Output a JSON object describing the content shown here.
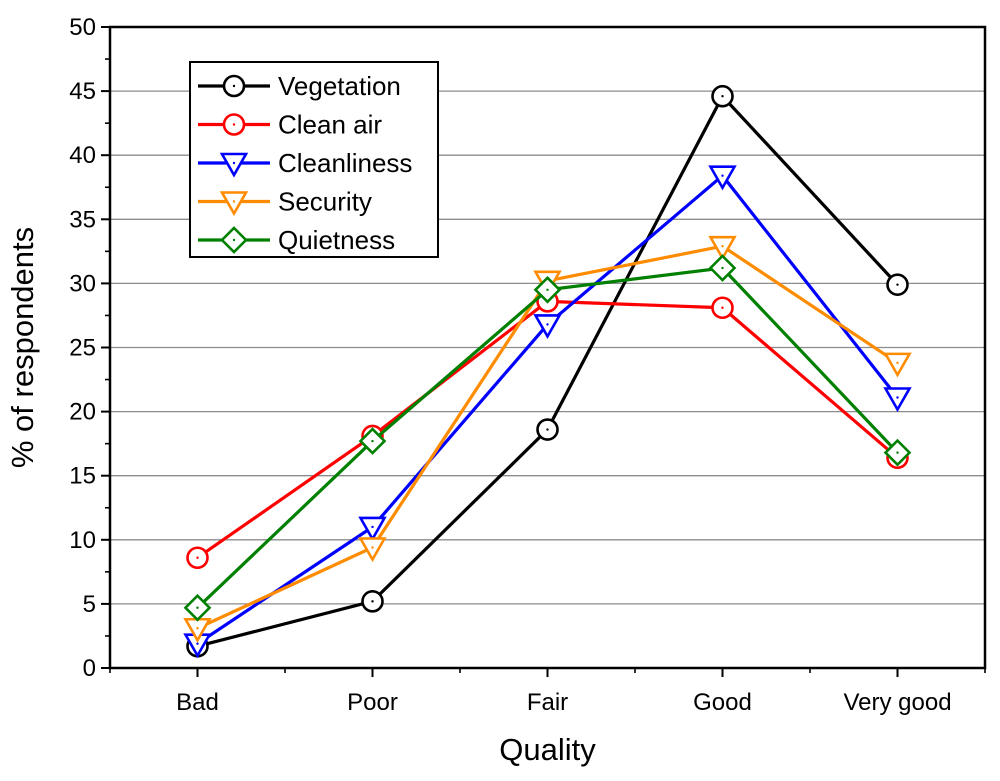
{
  "chart_data": {
    "type": "line",
    "title": "",
    "xlabel": "Quality",
    "ylabel": "% of respondents",
    "categories": [
      "Bad",
      "Poor",
      "Fair",
      "Good",
      "Very good"
    ],
    "ylim": [
      0,
      50
    ],
    "yticks": [
      0,
      5,
      10,
      15,
      20,
      25,
      30,
      35,
      40,
      45,
      50
    ],
    "grid": "horizontal",
    "legend_position": "top-left",
    "series": [
      {
        "name": "Vegetation",
        "color": "#000000",
        "marker": "circle",
        "values": [
          1.7,
          5.2,
          18.6,
          44.6,
          29.9
        ]
      },
      {
        "name": "Clean air",
        "color": "#ff0000",
        "marker": "circle",
        "values": [
          8.6,
          18.1,
          28.6,
          28.1,
          16.4
        ]
      },
      {
        "name": "Cleanliness",
        "color": "#0000ff",
        "marker": "triangle-down",
        "values": [
          1.9,
          11.0,
          26.8,
          38.4,
          21.1
        ]
      },
      {
        "name": "Security",
        "color": "#ff8c00",
        "marker": "triangle-down",
        "values": [
          3.1,
          9.4,
          30.2,
          32.9,
          23.8
        ]
      },
      {
        "name": "Quietness",
        "color": "#008000",
        "marker": "diamond",
        "values": [
          4.7,
          17.7,
          29.5,
          31.2,
          16.8
        ]
      }
    ]
  }
}
